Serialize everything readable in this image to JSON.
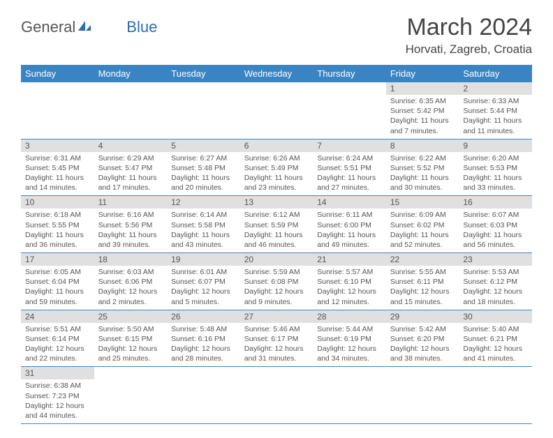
{
  "logo": {
    "part1": "General",
    "part2": "Blue"
  },
  "title": "March 2024",
  "location": "Horvati, Zagreb, Croatia",
  "colors": {
    "header_bg": "#3b84c4",
    "header_text": "#ffffff",
    "daynum_bg": "#e0e0e0",
    "text": "#555555",
    "border": "#3b84c4"
  },
  "day_headers": [
    "Sunday",
    "Monday",
    "Tuesday",
    "Wednesday",
    "Thursday",
    "Friday",
    "Saturday"
  ],
  "weeks": [
    [
      {
        "num": "",
        "lines": []
      },
      {
        "num": "",
        "lines": []
      },
      {
        "num": "",
        "lines": []
      },
      {
        "num": "",
        "lines": []
      },
      {
        "num": "",
        "lines": []
      },
      {
        "num": "1",
        "lines": [
          "Sunrise: 6:35 AM",
          "Sunset: 5:42 PM",
          "Daylight: 11 hours and 7 minutes."
        ]
      },
      {
        "num": "2",
        "lines": [
          "Sunrise: 6:33 AM",
          "Sunset: 5:44 PM",
          "Daylight: 11 hours and 11 minutes."
        ]
      }
    ],
    [
      {
        "num": "3",
        "lines": [
          "Sunrise: 6:31 AM",
          "Sunset: 5:45 PM",
          "Daylight: 11 hours and 14 minutes."
        ]
      },
      {
        "num": "4",
        "lines": [
          "Sunrise: 6:29 AM",
          "Sunset: 5:47 PM",
          "Daylight: 11 hours and 17 minutes."
        ]
      },
      {
        "num": "5",
        "lines": [
          "Sunrise: 6:27 AM",
          "Sunset: 5:48 PM",
          "Daylight: 11 hours and 20 minutes."
        ]
      },
      {
        "num": "6",
        "lines": [
          "Sunrise: 6:26 AM",
          "Sunset: 5:49 PM",
          "Daylight: 11 hours and 23 minutes."
        ]
      },
      {
        "num": "7",
        "lines": [
          "Sunrise: 6:24 AM",
          "Sunset: 5:51 PM",
          "Daylight: 11 hours and 27 minutes."
        ]
      },
      {
        "num": "8",
        "lines": [
          "Sunrise: 6:22 AM",
          "Sunset: 5:52 PM",
          "Daylight: 11 hours and 30 minutes."
        ]
      },
      {
        "num": "9",
        "lines": [
          "Sunrise: 6:20 AM",
          "Sunset: 5:53 PM",
          "Daylight: 11 hours and 33 minutes."
        ]
      }
    ],
    [
      {
        "num": "10",
        "lines": [
          "Sunrise: 6:18 AM",
          "Sunset: 5:55 PM",
          "Daylight: 11 hours and 36 minutes."
        ]
      },
      {
        "num": "11",
        "lines": [
          "Sunrise: 6:16 AM",
          "Sunset: 5:56 PM",
          "Daylight: 11 hours and 39 minutes."
        ]
      },
      {
        "num": "12",
        "lines": [
          "Sunrise: 6:14 AM",
          "Sunset: 5:58 PM",
          "Daylight: 11 hours and 43 minutes."
        ]
      },
      {
        "num": "13",
        "lines": [
          "Sunrise: 6:12 AM",
          "Sunset: 5:59 PM",
          "Daylight: 11 hours and 46 minutes."
        ]
      },
      {
        "num": "14",
        "lines": [
          "Sunrise: 6:11 AM",
          "Sunset: 6:00 PM",
          "Daylight: 11 hours and 49 minutes."
        ]
      },
      {
        "num": "15",
        "lines": [
          "Sunrise: 6:09 AM",
          "Sunset: 6:02 PM",
          "Daylight: 11 hours and 52 minutes."
        ]
      },
      {
        "num": "16",
        "lines": [
          "Sunrise: 6:07 AM",
          "Sunset: 6:03 PM",
          "Daylight: 11 hours and 56 minutes."
        ]
      }
    ],
    [
      {
        "num": "17",
        "lines": [
          "Sunrise: 6:05 AM",
          "Sunset: 6:04 PM",
          "Daylight: 11 hours and 59 minutes."
        ]
      },
      {
        "num": "18",
        "lines": [
          "Sunrise: 6:03 AM",
          "Sunset: 6:06 PM",
          "Daylight: 12 hours and 2 minutes."
        ]
      },
      {
        "num": "19",
        "lines": [
          "Sunrise: 6:01 AM",
          "Sunset: 6:07 PM",
          "Daylight: 12 hours and 5 minutes."
        ]
      },
      {
        "num": "20",
        "lines": [
          "Sunrise: 5:59 AM",
          "Sunset: 6:08 PM",
          "Daylight: 12 hours and 9 minutes."
        ]
      },
      {
        "num": "21",
        "lines": [
          "Sunrise: 5:57 AM",
          "Sunset: 6:10 PM",
          "Daylight: 12 hours and 12 minutes."
        ]
      },
      {
        "num": "22",
        "lines": [
          "Sunrise: 5:55 AM",
          "Sunset: 6:11 PM",
          "Daylight: 12 hours and 15 minutes."
        ]
      },
      {
        "num": "23",
        "lines": [
          "Sunrise: 5:53 AM",
          "Sunset: 6:12 PM",
          "Daylight: 12 hours and 18 minutes."
        ]
      }
    ],
    [
      {
        "num": "24",
        "lines": [
          "Sunrise: 5:51 AM",
          "Sunset: 6:14 PM",
          "Daylight: 12 hours and 22 minutes."
        ]
      },
      {
        "num": "25",
        "lines": [
          "Sunrise: 5:50 AM",
          "Sunset: 6:15 PM",
          "Daylight: 12 hours and 25 minutes."
        ]
      },
      {
        "num": "26",
        "lines": [
          "Sunrise: 5:48 AM",
          "Sunset: 6:16 PM",
          "Daylight: 12 hours and 28 minutes."
        ]
      },
      {
        "num": "27",
        "lines": [
          "Sunrise: 5:46 AM",
          "Sunset: 6:17 PM",
          "Daylight: 12 hours and 31 minutes."
        ]
      },
      {
        "num": "28",
        "lines": [
          "Sunrise: 5:44 AM",
          "Sunset: 6:19 PM",
          "Daylight: 12 hours and 34 minutes."
        ]
      },
      {
        "num": "29",
        "lines": [
          "Sunrise: 5:42 AM",
          "Sunset: 6:20 PM",
          "Daylight: 12 hours and 38 minutes."
        ]
      },
      {
        "num": "30",
        "lines": [
          "Sunrise: 5:40 AM",
          "Sunset: 6:21 PM",
          "Daylight: 12 hours and 41 minutes."
        ]
      }
    ],
    [
      {
        "num": "31",
        "lines": [
          "Sunrise: 6:38 AM",
          "Sunset: 7:23 PM",
          "Daylight: 12 hours and 44 minutes."
        ]
      },
      {
        "num": "",
        "lines": []
      },
      {
        "num": "",
        "lines": []
      },
      {
        "num": "",
        "lines": []
      },
      {
        "num": "",
        "lines": []
      },
      {
        "num": "",
        "lines": []
      },
      {
        "num": "",
        "lines": []
      }
    ]
  ]
}
